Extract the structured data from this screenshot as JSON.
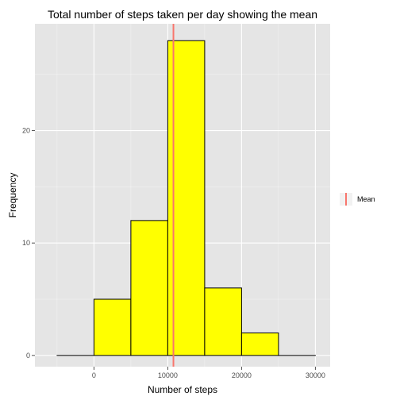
{
  "chart_data": {
    "type": "bar",
    "title": "Total number of steps taken per day showing the mean",
    "xlabel": "Number of steps",
    "ylabel": "Frequency",
    "xlim": [
      -8000,
      32000
    ],
    "ylim": [
      -1,
      29.5
    ],
    "x_ticks": [
      0,
      10000,
      20000,
      30000
    ],
    "x_tick_labels": [
      "0",
      "10000",
      "20000",
      "30000"
    ],
    "y_ticks": [
      0,
      10,
      20
    ],
    "y_tick_labels": [
      "0",
      "10",
      "20"
    ],
    "bins": [
      {
        "start": -5000,
        "end": 0,
        "count": 0
      },
      {
        "start": 0,
        "end": 5000,
        "count": 5
      },
      {
        "start": 5000,
        "end": 10000,
        "count": 12
      },
      {
        "start": 10000,
        "end": 15000,
        "count": 28
      },
      {
        "start": 15000,
        "end": 20000,
        "count": 6
      },
      {
        "start": 20000,
        "end": 25000,
        "count": 2
      },
      {
        "start": 25000,
        "end": 30000,
        "count": 0
      }
    ],
    "bar_fill": "#ffff00",
    "bar_outline": "#000000",
    "mean": 10766,
    "mean_color": "#f8766d",
    "legend": [
      {
        "label": "Mean",
        "color": "#f8766d"
      }
    ],
    "legend_position": "right",
    "grid": true,
    "panel_background": "#e5e5e5",
    "grid_color": "#ffffff"
  }
}
